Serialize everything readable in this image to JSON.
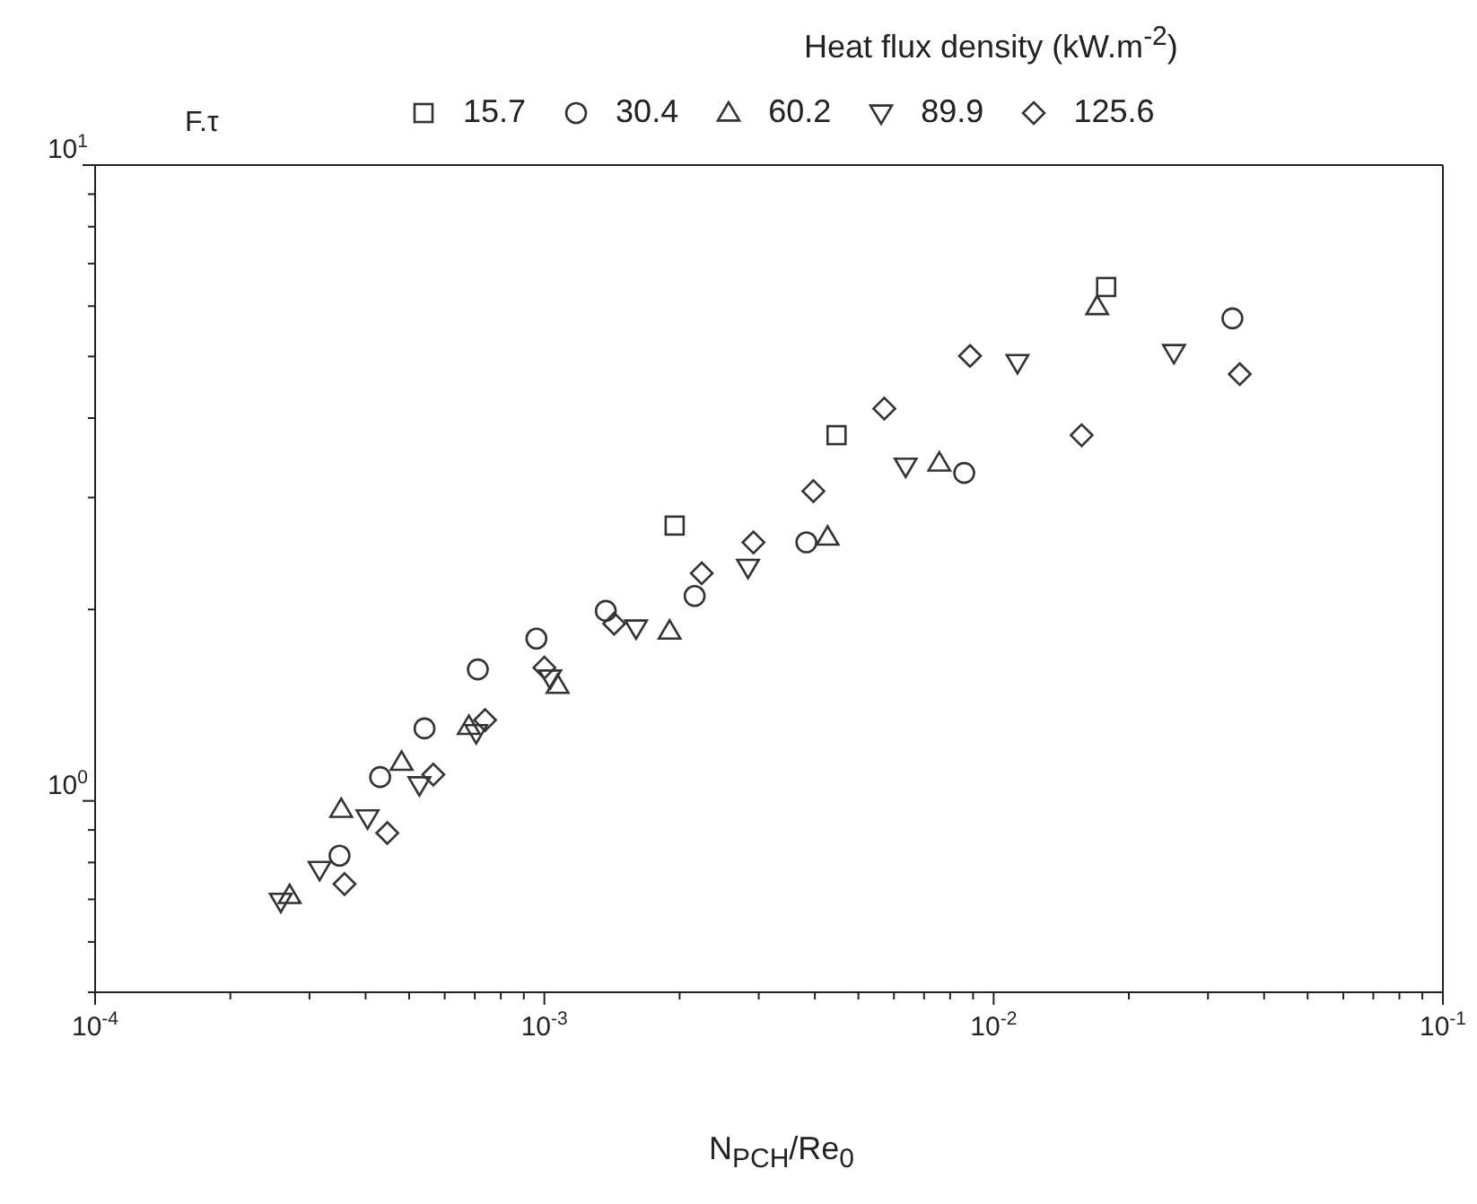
{
  "chart_data": {
    "type": "scatter",
    "xlabel": "N$_{PCH}$/Re$_{0}$",
    "ylabel": "F.τ",
    "legend_title": "Heat flux density (kW.m$^{-2}$)",
    "legend": "top",
    "log": "xy",
    "xlim": [
      0.0001,
      0.1
    ],
    "ylim": [
      0.5,
      10
    ],
    "xticks": [
      {
        "value": 0.0001,
        "label": "10$^{-4}$"
      },
      {
        "value": 0.0002,
        "label": null
      },
      {
        "value": 0.0003,
        "label": null
      },
      {
        "value": 0.0004,
        "label": null
      },
      {
        "value": 0.0005,
        "label": null
      },
      {
        "value": 0.0006,
        "label": null
      },
      {
        "value": 0.0007,
        "label": null
      },
      {
        "value": 0.0008,
        "label": null
      },
      {
        "value": 0.0009,
        "label": null
      },
      {
        "value": 0.001,
        "label": "10$^{-3}$"
      },
      {
        "value": 0.002,
        "label": null
      },
      {
        "value": 0.003,
        "label": null
      },
      {
        "value": 0.004,
        "label": null
      },
      {
        "value": 0.005,
        "label": null
      },
      {
        "value": 0.006,
        "label": null
      },
      {
        "value": 0.007,
        "label": null
      },
      {
        "value": 0.008,
        "label": null
      },
      {
        "value": 0.009,
        "label": null
      },
      {
        "value": 0.01,
        "label": "10$^{-2}$"
      },
      {
        "value": 0.02,
        "label": null
      },
      {
        "value": 0.03,
        "label": null
      },
      {
        "value": 0.04,
        "label": null
      },
      {
        "value": 0.05,
        "label": null
      },
      {
        "value": 0.06,
        "label": null
      },
      {
        "value": 0.07,
        "label": null
      },
      {
        "value": 0.08,
        "label": null
      },
      {
        "value": 0.09,
        "label": null
      },
      {
        "value": 0.1,
        "label": "10$^{-1}$"
      }
    ],
    "yticks": [
      {
        "value": 0.5,
        "label": null
      },
      {
        "value": 0.6,
        "label": null
      },
      {
        "value": 0.7,
        "label": null
      },
      {
        "value": 0.8,
        "label": null
      },
      {
        "value": 0.9,
        "label": null
      },
      {
        "value": 1,
        "label": "10$^{0}$"
      },
      {
        "value": 2,
        "label": null
      },
      {
        "value": 3,
        "label": null
      },
      {
        "value": 4,
        "label": null
      },
      {
        "value": 5,
        "label": null
      },
      {
        "value": 6,
        "label": null
      },
      {
        "value": 7,
        "label": null
      },
      {
        "value": 8,
        "label": null
      },
      {
        "value": 9,
        "label": null
      },
      {
        "value": 10,
        "label": "10$^{1}$"
      }
    ],
    "series": [
      {
        "name": "15.7",
        "color": "#333333",
        "marker": "square",
        "x": [
          0.00195,
          0.00447,
          0.0178
        ],
        "values": [
          2.71,
          3.76,
          6.43
        ]
      },
      {
        "name": "30.4",
        "color": "#333333",
        "marker": "circle",
        "x": [
          0.00035,
          0.000431,
          0.000541,
          0.000711,
          0.00096,
          0.00137,
          0.00216,
          0.00383,
          0.0086,
          0.034
        ],
        "values": [
          0.82,
          1.09,
          1.3,
          1.61,
          1.8,
          1.99,
          2.1,
          2.55,
          3.28,
          5.74
        ]
      },
      {
        "name": "60.2",
        "color": "#333333",
        "marker": "triangle",
        "x": [
          0.000271,
          0.000353,
          0.000481,
          0.000679,
          0.00107,
          0.0019,
          0.00427,
          0.00757,
          0.017
        ],
        "values": [
          0.71,
          0.97,
          1.15,
          1.31,
          1.52,
          1.85,
          2.6,
          3.4,
          5.99
        ]
      },
      {
        "name": "89.9",
        "color": "#333333",
        "marker": "triangle-down",
        "x": [
          0.000259,
          0.000316,
          0.000404,
          0.000527,
          0.000705,
          0.00103,
          0.0016,
          0.00284,
          0.00637,
          0.0113,
          0.0252
        ],
        "values": [
          0.695,
          0.78,
          0.94,
          1.06,
          1.28,
          1.56,
          1.87,
          2.33,
          3.36,
          4.89,
          5.07
        ]
      },
      {
        "name": "125.6",
        "color": "#333333",
        "marker": "diamond",
        "x": [
          0.000359,
          0.000447,
          0.000566,
          0.000738,
          0.001,
          0.00143,
          0.00224,
          0.00292,
          0.00397,
          0.00571,
          0.00886,
          0.0157,
          0.0353
        ],
        "values": [
          0.74,
          0.89,
          1.1,
          1.34,
          1.62,
          1.9,
          2.28,
          2.55,
          3.07,
          4.14,
          5.01,
          3.76,
          4.69
        ]
      }
    ]
  }
}
